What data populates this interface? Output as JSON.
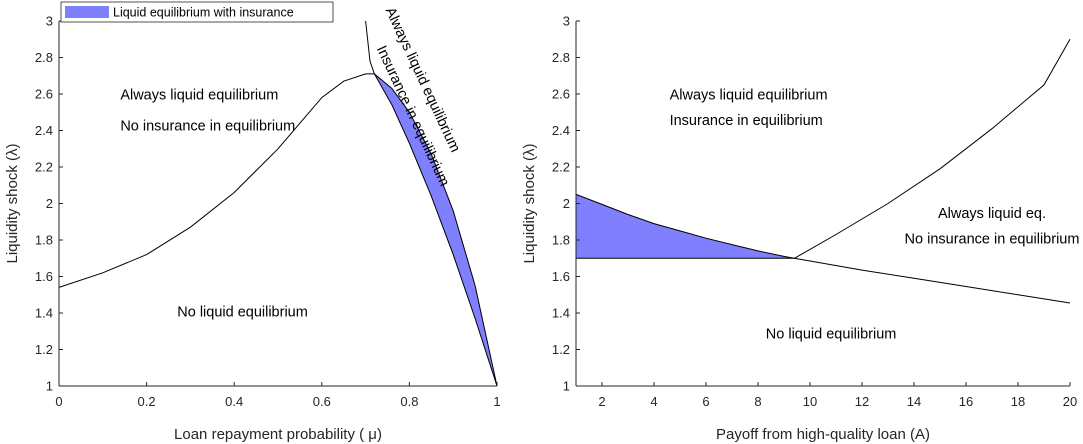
{
  "chart_data": [
    {
      "type": "area",
      "title": "",
      "xlabel": "Loan repayment probability ( μ)",
      "ylabel": "Liquidity shock (λ)",
      "xlim": [
        0,
        1
      ],
      "ylim": [
        1,
        3
      ],
      "xticks": [
        "0",
        "0.2",
        "0.4",
        "0.6",
        "0.8",
        "1"
      ],
      "yticks": [
        "1",
        "1.2",
        "1.4",
        "1.6",
        "1.8",
        "2",
        "2.2",
        "2.4",
        "2.6",
        "2.8",
        "3"
      ],
      "legend": {
        "placement": "top-left",
        "label": "Liquid equilibrium with insurance",
        "color": "#8080ff"
      },
      "series": [
        {
          "values": [
            {
              "x": 0.0,
              "y": 1.54
            },
            {
              "x": 0.1,
              "y": 1.62
            },
            {
              "x": 0.2,
              "y": 1.72
            },
            {
              "x": 0.3,
              "y": 1.87
            },
            {
              "x": 0.4,
              "y": 2.06
            },
            {
              "x": 0.5,
              "y": 2.3
            },
            {
              "x": 0.6,
              "y": 2.58
            },
            {
              "x": 0.65,
              "y": 2.67
            },
            {
              "x": 0.7,
              "y": 2.71
            },
            {
              "x": 0.72,
              "y": 2.71
            },
            {
              "x": 0.76,
              "y": 2.54
            },
            {
              "x": 0.8,
              "y": 2.33
            },
            {
              "x": 0.85,
              "y": 2.04
            },
            {
              "x": 0.9,
              "y": 1.72
            },
            {
              "x": 0.95,
              "y": 1.37
            },
            {
              "x": 1.0,
              "y": 1.0
            }
          ]
        },
        {
          "values": [
            {
              "x": 0.7,
              "y": 3.0
            },
            {
              "x": 0.71,
              "y": 2.78
            },
            {
              "x": 0.72,
              "y": 2.71
            },
            {
              "x": 0.76,
              "y": 2.63
            },
            {
              "x": 0.8,
              "y": 2.5
            },
            {
              "x": 0.85,
              "y": 2.27
            },
            {
              "x": 0.9,
              "y": 1.96
            },
            {
              "x": 0.95,
              "y": 1.55
            },
            {
              "x": 1.0,
              "y": 1.0
            }
          ]
        }
      ],
      "annotations": [
        {
          "text": "Always liquid equilibrium",
          "x": 0.14,
          "y": 2.57
        },
        {
          "text": "No insurance in equilibrium",
          "x": 0.14,
          "y": 2.4
        },
        {
          "text": "No liquid equilibrium",
          "x": 0.27,
          "y": 1.38
        },
        {
          "text": "Always liquid equilibrium",
          "x": 0.745,
          "y": 3.06,
          "angle": 65
        },
        {
          "text": "Insurance in equilibrium",
          "x": 0.725,
          "y": 2.85,
          "angle": 65
        }
      ]
    },
    {
      "type": "area",
      "title": "",
      "xlabel": "Payoff from high-quality loan (A)",
      "ylabel": "Liquidity shock (λ)",
      "xlim": [
        1,
        20
      ],
      "ylim": [
        1,
        3
      ],
      "xticks": [
        "2",
        "4",
        "6",
        "8",
        "10",
        "12",
        "14",
        "16",
        "18",
        "20"
      ],
      "yticks": [
        "1",
        "1.2",
        "1.4",
        "1.6",
        "1.8",
        "2",
        "2.2",
        "2.4",
        "2.6",
        "2.8",
        "3"
      ],
      "series": [
        {
          "values": [
            {
              "x": 1,
              "y": 2.05
            },
            {
              "x": 2,
              "y": 1.995
            },
            {
              "x": 3,
              "y": 1.94
            },
            {
              "x": 4,
              "y": 1.89
            },
            {
              "x": 5,
              "y": 1.85
            },
            {
              "x": 6,
              "y": 1.81
            },
            {
              "x": 7,
              "y": 1.775
            },
            {
              "x": 8,
              "y": 1.74
            },
            {
              "x": 9,
              "y": 1.71
            },
            {
              "x": 9.4,
              "y": 1.7
            },
            {
              "x": 10,
              "y": 1.685
            },
            {
              "x": 12,
              "y": 1.635
            },
            {
              "x": 14,
              "y": 1.59
            },
            {
              "x": 16,
              "y": 1.545
            },
            {
              "x": 18,
              "y": 1.5
            },
            {
              "x": 20,
              "y": 1.455
            }
          ]
        },
        {
          "values": [
            {
              "x": 9.4,
              "y": 1.7
            },
            {
              "x": 11,
              "y": 1.83
            },
            {
              "x": 13,
              "y": 2.0
            },
            {
              "x": 15,
              "y": 2.19
            },
            {
              "x": 17,
              "y": 2.41
            },
            {
              "x": 19,
              "y": 2.65
            },
            {
              "x": 20,
              "y": 2.9
            }
          ]
        },
        {
          "values": [
            {
              "x": 1,
              "y": 1.7
            },
            {
              "x": 9.4,
              "y": 1.7
            }
          ]
        }
      ],
      "annotations": [
        {
          "text": "Always liquid equilibrium",
          "x": 4.6,
          "y": 2.57
        },
        {
          "text": "Insurance in equilibrium",
          "x": 4.6,
          "y": 2.43
        },
        {
          "text": "Always liquid eq.",
          "x": 17.0,
          "y": 1.92
        },
        {
          "text": "No insurance in equilibrium",
          "x": 17.0,
          "y": 1.78
        },
        {
          "text": "No liquid equilibrium",
          "x": 8.3,
          "y": 1.26
        }
      ]
    }
  ]
}
